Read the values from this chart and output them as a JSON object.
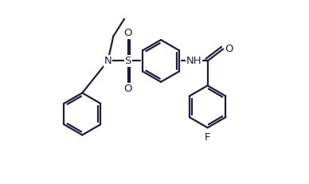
{
  "line_color": "#1e1e3c",
  "bg_color": "#ffffff",
  "line_width": 1.6,
  "dbo": 0.015,
  "font_size": 9.5,
  "fig_width": 3.88,
  "fig_height": 2.31,
  "xlim": [
    -0.05,
    1.05
  ],
  "ylim": [
    0.0,
    1.0
  ]
}
